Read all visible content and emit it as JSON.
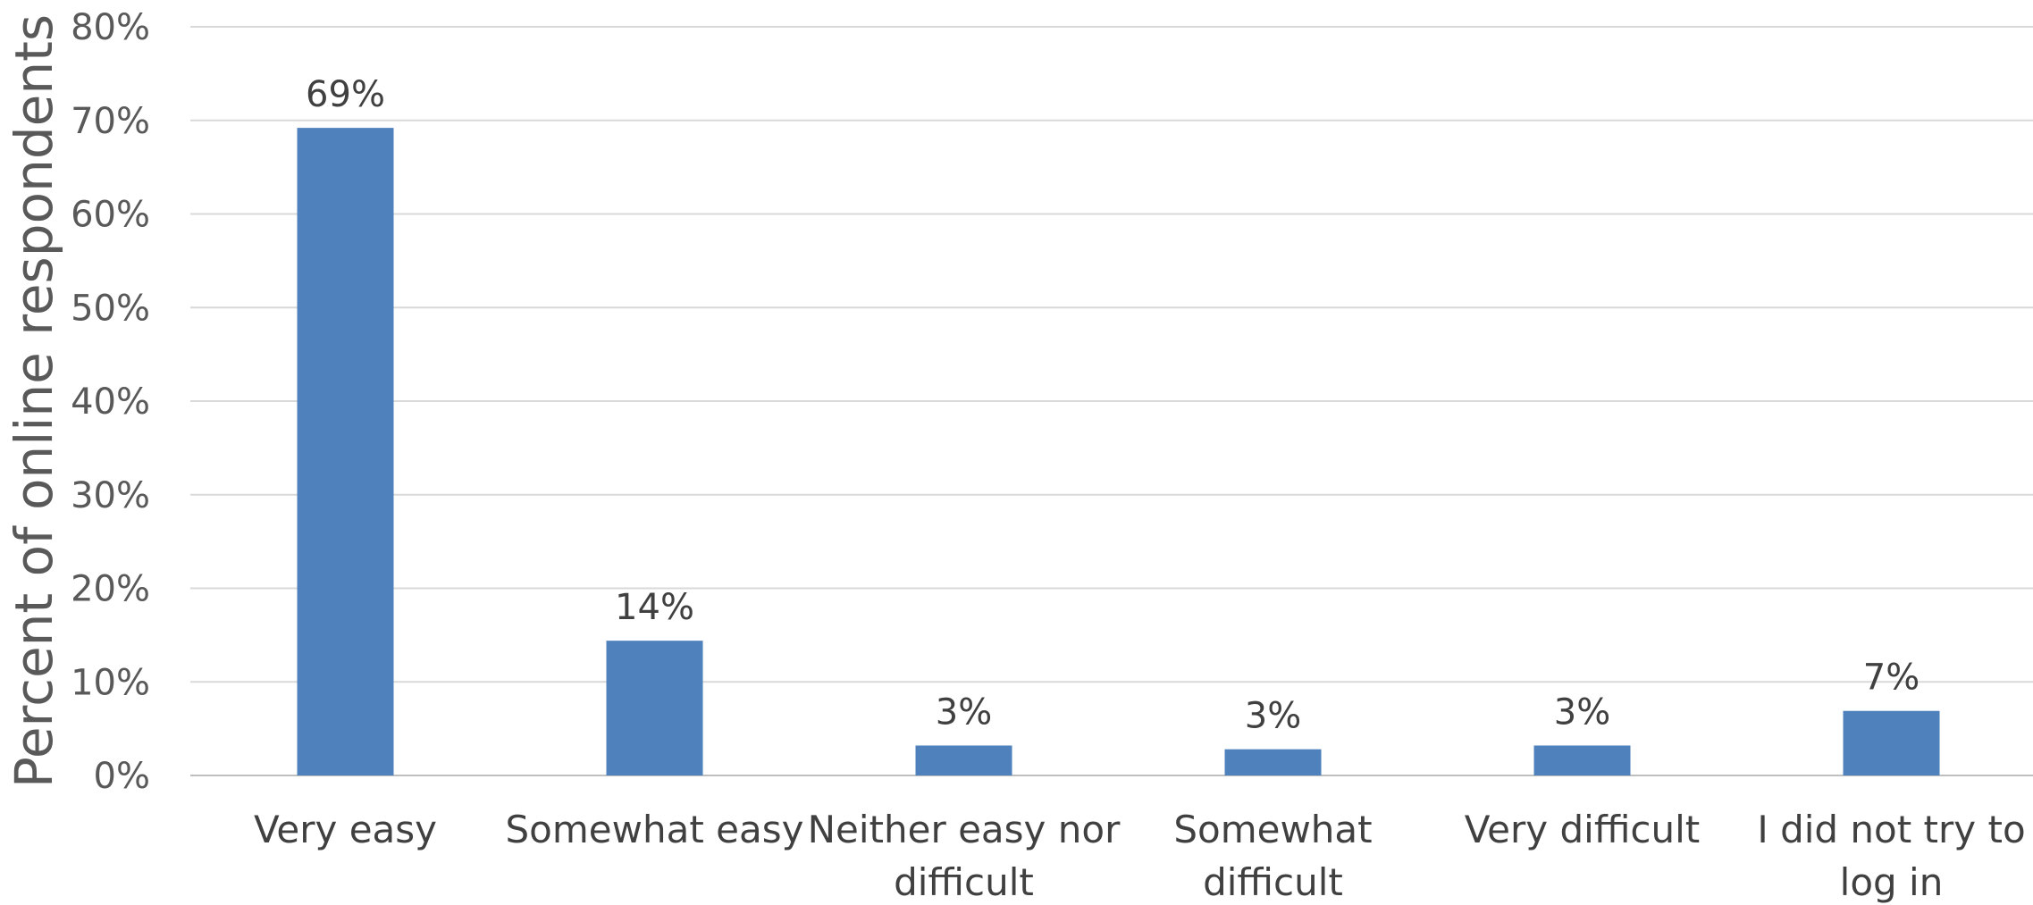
{
  "chart_data": {
    "type": "bar",
    "title": "",
    "xlabel": "",
    "ylabel": "Percent of online respondents",
    "categories": [
      [
        "Very easy"
      ],
      [
        "Somewhat easy"
      ],
      [
        "Neither easy nor",
        "difficult"
      ],
      [
        "Somewhat",
        "difficult"
      ],
      [
        "Very difficult"
      ],
      [
        "I did not try to",
        "log in"
      ]
    ],
    "values": [
      69,
      14,
      3,
      3,
      3,
      7
    ],
    "plotted_values": [
      69.2,
      14.4,
      3.2,
      2.8,
      3.2,
      6.9
    ],
    "data_labels": [
      "69%",
      "14%",
      "3%",
      "3%",
      "3%",
      "7%"
    ],
    "yticks": [
      "0%",
      "10%",
      "20%",
      "30%",
      "40%",
      "50%",
      "60%",
      "70%",
      "80%"
    ],
    "ylim": [
      0,
      80
    ],
    "grid": true,
    "legend": "none",
    "colors": {
      "bar": "#4f81bd",
      "grid": "#d9d9d9",
      "title": "#1f2a7a"
    }
  }
}
